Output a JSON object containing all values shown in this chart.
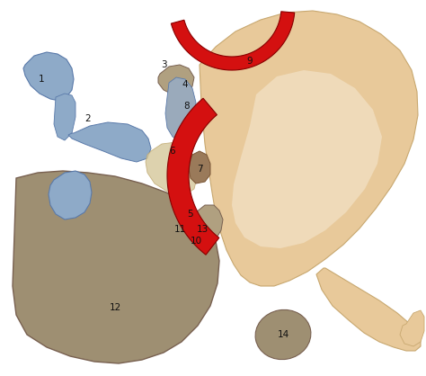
{
  "bg": "#ffffff",
  "skin": "#e8c99a",
  "skin_light": "#f2e0bc",
  "skin_lighter": "#f8f0e0",
  "red": "#d41010",
  "blue": "#8eaac8",
  "tan": "#9e8f72",
  "tan2": "#b0a080",
  "cream": "#d8cba0",
  "brown": "#9a7a5a",
  "gray_blue": "#9aaabb",
  "label_fs": 7.5,
  "label_color": "#111111"
}
